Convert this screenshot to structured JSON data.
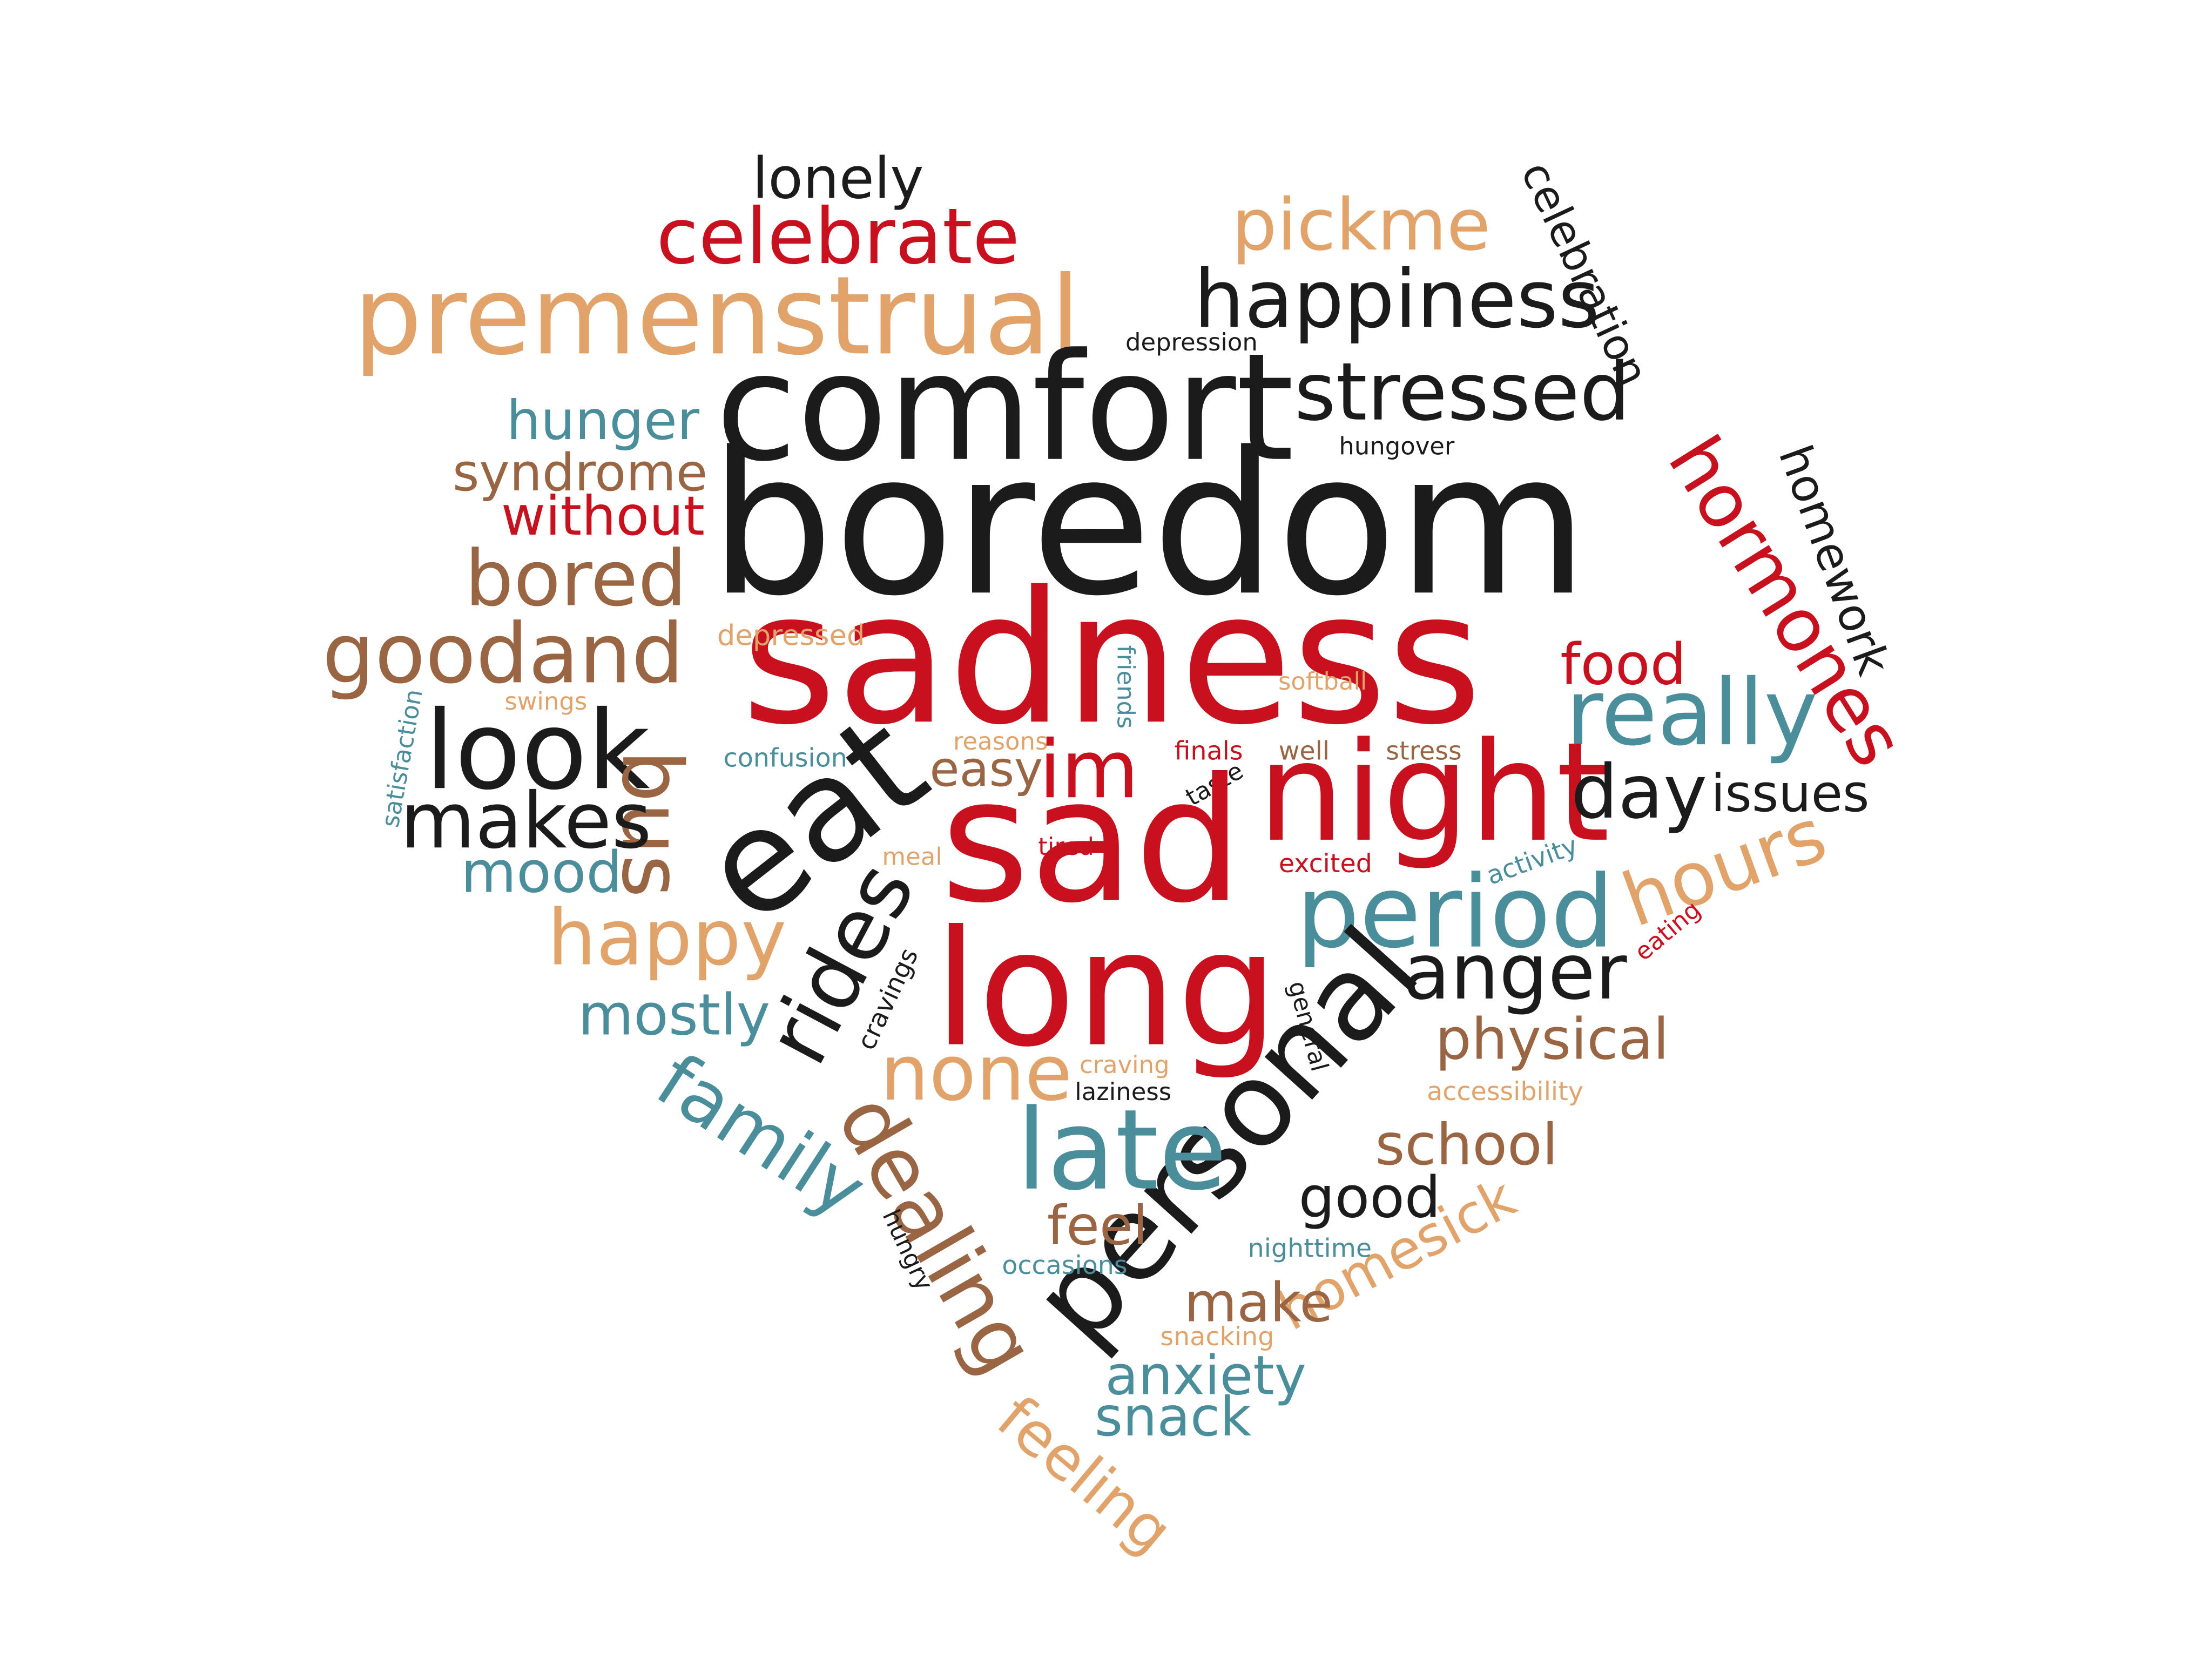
{
  "palette": {
    "red": "#c8101e",
    "black": "#1b1b1b",
    "orange": "#e1a36a",
    "teal": "#4a8d9b",
    "brown": "#9a6543"
  },
  "words": [
    {
      "text": "lonely",
      "color": "black"
    },
    {
      "text": "celebrate",
      "color": "red"
    },
    {
      "text": "pickme",
      "color": "orange"
    },
    {
      "text": "celebration",
      "color": "black"
    },
    {
      "text": "premenstrual",
      "color": "orange"
    },
    {
      "text": "happiness",
      "color": "black"
    },
    {
      "text": "depression",
      "color": "black"
    },
    {
      "text": "comfort",
      "color": "black"
    },
    {
      "text": "stressed",
      "color": "black"
    },
    {
      "text": "hunger",
      "color": "teal"
    },
    {
      "text": "hungover",
      "color": "black"
    },
    {
      "text": "syndrome",
      "color": "brown"
    },
    {
      "text": "without",
      "color": "red"
    },
    {
      "text": "boredom",
      "color": "black"
    },
    {
      "text": "hormones",
      "color": "red"
    },
    {
      "text": "homework",
      "color": "black"
    },
    {
      "text": "bored",
      "color": "brown"
    },
    {
      "text": "sadness",
      "color": "red"
    },
    {
      "text": "goodand",
      "color": "brown"
    },
    {
      "text": "depressed",
      "color": "orange"
    },
    {
      "text": "friends",
      "color": "teal"
    },
    {
      "text": "softball",
      "color": "orange"
    },
    {
      "text": "food",
      "color": "red"
    },
    {
      "text": "really",
      "color": "teal"
    },
    {
      "text": "swings",
      "color": "orange"
    },
    {
      "text": "satisfaction",
      "color": "teal"
    },
    {
      "text": "look",
      "color": "black"
    },
    {
      "text": "bus",
      "color": "brown"
    },
    {
      "text": "confusion",
      "color": "teal"
    },
    {
      "text": "reasons",
      "color": "orange"
    },
    {
      "text": "easy",
      "color": "brown"
    },
    {
      "text": "im",
      "color": "red"
    },
    {
      "text": "finals",
      "color": "red"
    },
    {
      "text": "well",
      "color": "brown"
    },
    {
      "text": "stress",
      "color": "brown"
    },
    {
      "text": "taste",
      "color": "black"
    },
    {
      "text": "night",
      "color": "red"
    },
    {
      "text": "eat",
      "color": "black"
    },
    {
      "text": "day",
      "color": "black"
    },
    {
      "text": "issues",
      "color": "black"
    },
    {
      "text": "makes",
      "color": "black"
    },
    {
      "text": "sad",
      "color": "red"
    },
    {
      "text": "meal",
      "color": "orange"
    },
    {
      "text": "tired",
      "color": "red"
    },
    {
      "text": "excited",
      "color": "red"
    },
    {
      "text": "activity",
      "color": "teal"
    },
    {
      "text": "hours",
      "color": "orange"
    },
    {
      "text": "mood",
      "color": "teal"
    },
    {
      "text": "period",
      "color": "teal"
    },
    {
      "text": "rides",
      "color": "black"
    },
    {
      "text": "happy",
      "color": "orange"
    },
    {
      "text": "eating",
      "color": "red"
    },
    {
      "text": "cravings",
      "color": "black"
    },
    {
      "text": "long",
      "color": "red"
    },
    {
      "text": "anger",
      "color": "black"
    },
    {
      "text": "general",
      "color": "black"
    },
    {
      "text": "mostly",
      "color": "teal"
    },
    {
      "text": "physical",
      "color": "brown"
    },
    {
      "text": "none",
      "color": "orange"
    },
    {
      "text": "craving",
      "color": "orange"
    },
    {
      "text": "laziness",
      "color": "black"
    },
    {
      "text": "accessibility",
      "color": "orange"
    },
    {
      "text": "family",
      "color": "teal"
    },
    {
      "text": "personal",
      "color": "black"
    },
    {
      "text": "late",
      "color": "teal"
    },
    {
      "text": "school",
      "color": "brown"
    },
    {
      "text": "dealing",
      "color": "brown"
    },
    {
      "text": "good",
      "color": "black"
    },
    {
      "text": "feel",
      "color": "brown"
    },
    {
      "text": "hungry",
      "color": "black"
    },
    {
      "text": "homesick",
      "color": "orange"
    },
    {
      "text": "occasions",
      "color": "teal"
    },
    {
      "text": "nighttime",
      "color": "teal"
    },
    {
      "text": "make",
      "color": "brown"
    },
    {
      "text": "snacking",
      "color": "orange"
    },
    {
      "text": "anxiety",
      "color": "teal"
    },
    {
      "text": "snack",
      "color": "teal"
    },
    {
      "text": "feeling",
      "color": "orange"
    }
  ]
}
